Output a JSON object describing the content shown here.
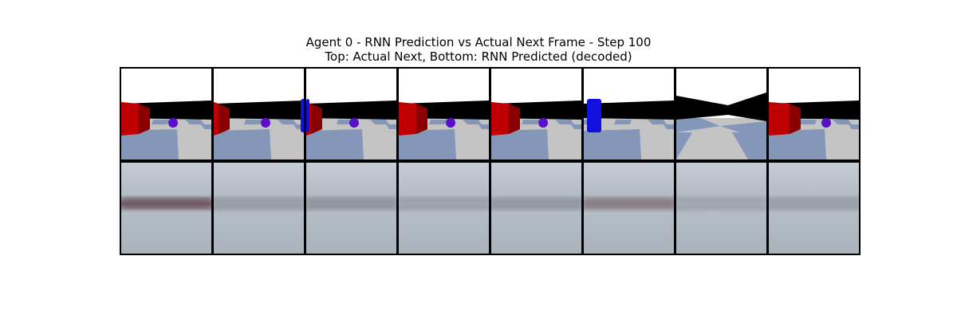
{
  "figure": {
    "title_line1": "Agent 0 - RNN Prediction vs Actual Next Frame - Step 100",
    "title_line2": "Top: Actual Next, Bottom: RNN Predicted (decoded)"
  },
  "frames": {
    "actual": [
      {
        "wall": "flat",
        "red_box": "left",
        "ball": true,
        "blue_cyl": false
      },
      {
        "wall": "flat",
        "red_box": "left-small",
        "ball": true,
        "blue_cyl": "right-edge"
      },
      {
        "wall": "flat",
        "red_box": "left-small",
        "ball": true,
        "blue_cyl": "left-edge"
      },
      {
        "wall": "flat",
        "red_box": "left",
        "ball": true,
        "blue_cyl": false
      },
      {
        "wall": "flat",
        "red_box": "left",
        "ball": true,
        "blue_cyl": false
      },
      {
        "wall": "flat",
        "red_box": false,
        "ball": false,
        "blue_cyl": "left"
      },
      {
        "wall": "corner",
        "red_box": false,
        "ball": false,
        "blue_cyl": false
      },
      {
        "wall": "flat",
        "red_box": "left-large",
        "ball": true,
        "blue_cyl": false
      }
    ],
    "predicted": [
      {
        "band_color": "#6e5560",
        "band_strength": 0.9
      },
      {
        "band_color": "#7a7e88",
        "band_strength": 0.3
      },
      {
        "band_color": "#767a82",
        "band_strength": 0.4
      },
      {
        "band_color": "#7c8088",
        "band_strength": 0.25
      },
      {
        "band_color": "#767a82",
        "band_strength": 0.35
      },
      {
        "band_color": "#7a6a70",
        "band_strength": 0.6
      },
      {
        "band_color": "#80848c",
        "band_strength": 0.2
      },
      {
        "band_color": "#7c8088",
        "band_strength": 0.3
      }
    ]
  },
  "colors": {
    "sky": "#ffffff",
    "wall": "#000000",
    "tile_blue": "#8497b8",
    "tile_gray": "#c4c4c4",
    "red_box": "#c00000",
    "red_box_side": "#8a0000",
    "ball": "#5a10c8",
    "blue_cyl": "#1010e0",
    "pred_bg": "#b4bcc6"
  }
}
